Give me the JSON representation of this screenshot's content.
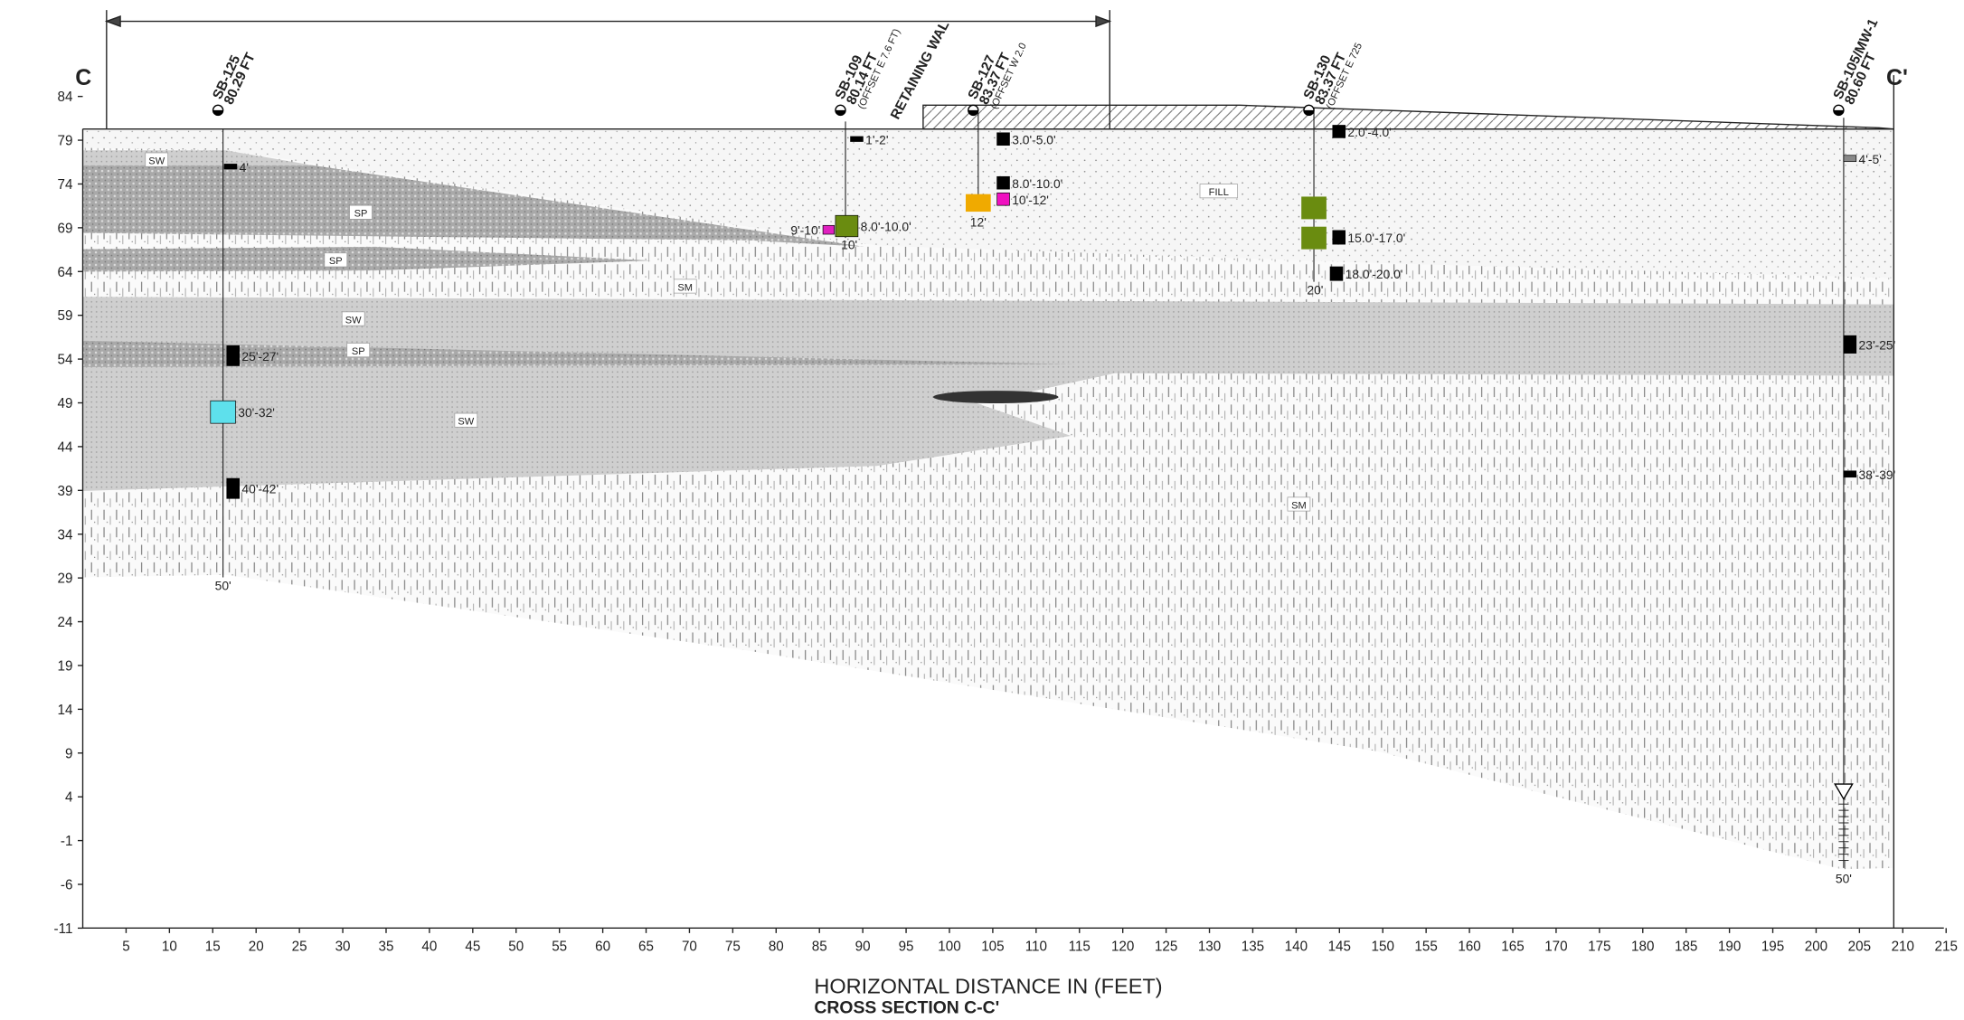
{
  "header": {
    "left_marker": "C",
    "right_marker": "C'",
    "wall_label": "RETAINING WAL"
  },
  "borings": [
    {
      "id": "SB-125",
      "elevation": "80.29 FT",
      "depth": "50'",
      "samples": [
        "4'",
        "25'-27'",
        "30'-32'",
        "40'-42'"
      ]
    },
    {
      "id": "SB-109",
      "elevation": "80.14 FT",
      "offset": "(OFFSET E 7.6 FT)",
      "depth": "10'",
      "samples": [
        "1'-2'",
        "9'-10'",
        "8.0'-10.0'"
      ]
    },
    {
      "id": "SB-127",
      "elevation": "83.37 FT",
      "offset": "(OFFSET W 2.0",
      "depth": "12'",
      "samples": [
        "3.0'-5.0'",
        "8.0'-10.0'",
        "10'-12'"
      ]
    },
    {
      "id": "SB-130",
      "elevation": "83.37 FT",
      "offset": "(OFFSET E 725",
      "depth": "20'",
      "samples": [
        "2.0'-4.0'",
        "15.0'-17.0'",
        "18.0'-20.0'"
      ]
    },
    {
      "id": "SB-105/MW-1",
      "elevation": "80.60 FT",
      "depth": "50'",
      "samples": [
        "4'-5'",
        "23'-25'",
        "38'-39'"
      ]
    }
  ],
  "soil_labels": [
    "SW",
    "SP",
    "SP",
    "SM",
    "SW",
    "SP",
    "SW",
    "FILL",
    "SM"
  ],
  "y_axis": {
    "ticks": [
      84,
      79,
      74,
      69,
      64,
      59,
      54,
      49,
      44,
      39,
      34,
      29,
      24,
      19,
      14,
      9,
      4,
      -1,
      -6,
      -11
    ]
  },
  "x_axis": {
    "ticks": [
      5,
      10,
      15,
      20,
      25,
      30,
      35,
      40,
      45,
      50,
      55,
      60,
      65,
      70,
      75,
      80,
      85,
      90,
      95,
      100,
      105,
      110,
      115,
      120,
      125,
      130,
      135,
      140,
      145,
      150,
      155,
      160,
      165,
      170,
      175,
      180,
      185,
      190,
      195,
      200,
      205,
      210,
      215
    ],
    "title": "HORIZONTAL DISTANCE IN (FEET)"
  },
  "caption": "CROSS SECTION C-C'"
}
